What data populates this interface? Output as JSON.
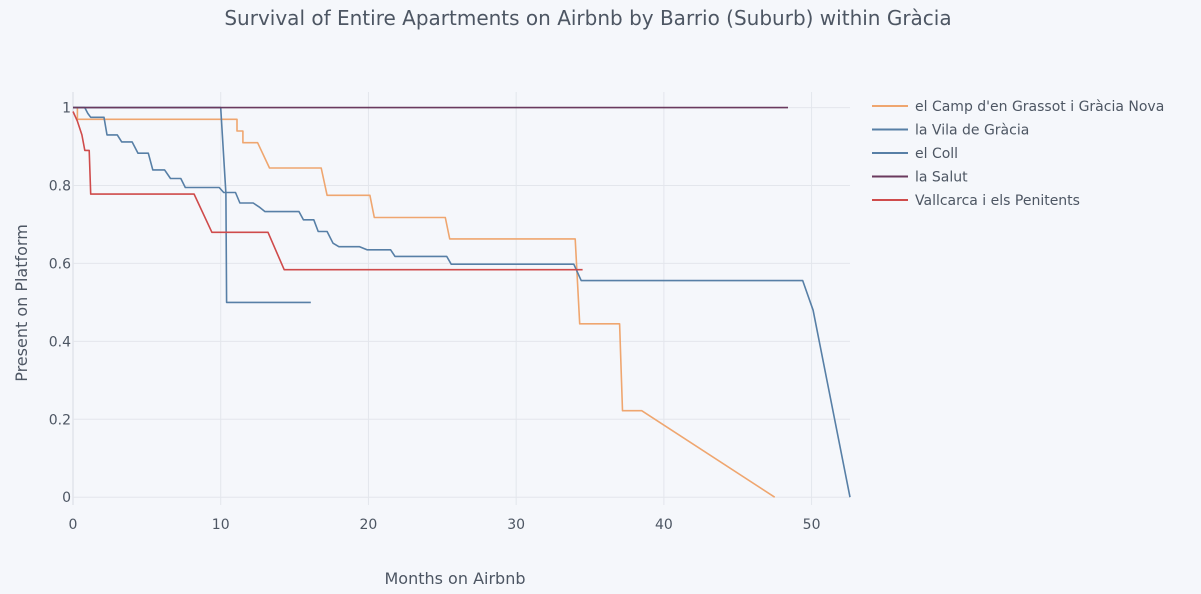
{
  "chart_data": {
    "type": "line",
    "title": "Survival of Entire Apartments on Airbnb by Barrio (Suburb) within Gràcia",
    "xlabel": "Months on Airbnb",
    "ylabel": "Present on Platform",
    "xlim": [
      0,
      52.6
    ],
    "ylim": [
      -0.02,
      1.04
    ],
    "xticks": [
      0,
      10,
      20,
      30,
      40,
      50
    ],
    "yticks": [
      0,
      0.2,
      0.4,
      0.6,
      0.8,
      1
    ],
    "ytick_labels": [
      "0",
      "0.2",
      "0.4",
      "0.6",
      "0.8",
      "1"
    ],
    "grid": true,
    "legend_position": "right",
    "series": [
      {
        "name": "el Camp d'en Grassot i Gràcia Nova",
        "color": "#efa66f",
        "points": [
          [
            0,
            1
          ],
          [
            0.3,
            1
          ],
          [
            0.3,
            0.97
          ],
          [
            11.1,
            0.97
          ],
          [
            11.1,
            0.94
          ],
          [
            11.5,
            0.94
          ],
          [
            11.5,
            0.91
          ],
          [
            12.5,
            0.91
          ],
          [
            13.3,
            0.845
          ],
          [
            16.8,
            0.845
          ],
          [
            17.2,
            0.775
          ],
          [
            20.1,
            0.775
          ],
          [
            20.4,
            0.718
          ],
          [
            25.2,
            0.718
          ],
          [
            25.5,
            0.663
          ],
          [
            34.0,
            0.663
          ],
          [
            34.3,
            0.445
          ],
          [
            37.0,
            0.445
          ],
          [
            37.2,
            0.222
          ],
          [
            38.5,
            0.222
          ],
          [
            47.5,
            0.0
          ]
        ]
      },
      {
        "name": "la Vila de Gràcia",
        "color": "#577fa6",
        "points": [
          [
            0,
            1
          ],
          [
            0.8,
            1
          ],
          [
            1.0,
            0.985
          ],
          [
            1.2,
            0.975
          ],
          [
            2.1,
            0.975
          ],
          [
            2.3,
            0.93
          ],
          [
            3.0,
            0.93
          ],
          [
            3.3,
            0.912
          ],
          [
            4.0,
            0.912
          ],
          [
            4.4,
            0.883
          ],
          [
            5.1,
            0.883
          ],
          [
            5.4,
            0.84
          ],
          [
            6.2,
            0.84
          ],
          [
            6.6,
            0.818
          ],
          [
            7.3,
            0.818
          ],
          [
            7.6,
            0.795
          ],
          [
            9.9,
            0.795
          ],
          [
            10.2,
            0.782
          ],
          [
            11.0,
            0.782
          ],
          [
            11.3,
            0.755
          ],
          [
            12.2,
            0.755
          ],
          [
            12.6,
            0.745
          ],
          [
            13.0,
            0.733
          ],
          [
            15.3,
            0.733
          ],
          [
            15.6,
            0.712
          ],
          [
            16.3,
            0.712
          ],
          [
            16.6,
            0.682
          ],
          [
            17.2,
            0.682
          ],
          [
            17.6,
            0.652
          ],
          [
            18.0,
            0.643
          ],
          [
            19.4,
            0.643
          ],
          [
            19.9,
            0.635
          ],
          [
            21.5,
            0.635
          ],
          [
            21.8,
            0.618
          ],
          [
            25.3,
            0.618
          ],
          [
            25.6,
            0.598
          ],
          [
            33.9,
            0.598
          ],
          [
            34.4,
            0.556
          ],
          [
            49.4,
            0.556
          ],
          [
            50.1,
            0.48
          ],
          [
            52.6,
            0.0
          ]
        ]
      },
      {
        "name": "el Coll",
        "color": "#577fa6",
        "points": [
          [
            0,
            1
          ],
          [
            10.0,
            1
          ],
          [
            10.35,
            0.78
          ],
          [
            10.4,
            0.5
          ],
          [
            16.1,
            0.5
          ]
        ]
      },
      {
        "name": "la Salut",
        "color": "#6a3a5e",
        "points": [
          [
            0,
            1
          ],
          [
            48.4,
            1
          ]
        ]
      },
      {
        "name": "Vallcarca i els Penitents",
        "color": "#cf4b4b",
        "points": [
          [
            0,
            0.99
          ],
          [
            0.3,
            0.965
          ],
          [
            0.6,
            0.93
          ],
          [
            0.8,
            0.89
          ],
          [
            1.1,
            0.89
          ],
          [
            1.2,
            0.778
          ],
          [
            8.2,
            0.778
          ],
          [
            9.4,
            0.68
          ],
          [
            13.2,
            0.68
          ],
          [
            14.3,
            0.584
          ],
          [
            34.5,
            0.584
          ]
        ]
      }
    ]
  }
}
